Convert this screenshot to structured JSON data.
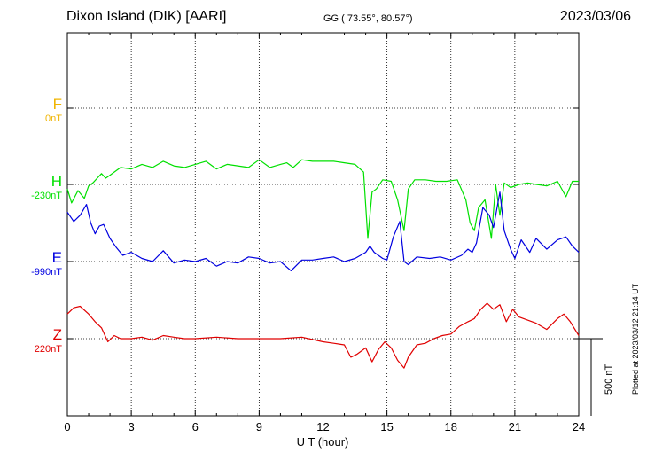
{
  "header": {
    "station": "Dixon Island (DIK)  [AARI]",
    "coords": "GG ( 73.55°,  80.57°)",
    "date": "2023/03/06"
  },
  "plotted_note": "Plotted at 2023/03/12 21:14 UT",
  "chart_data": {
    "type": "line",
    "xlabel": "U T (hour)",
    "xlim": [
      0,
      24
    ],
    "xticks": [
      "0",
      "3",
      "6",
      "9",
      "12",
      "15",
      "18",
      "21",
      "24"
    ],
    "scale_bar": "500 nT",
    "colors": {
      "F": "#f0b400",
      "H": "#00e000",
      "E": "#0000e0",
      "Z": "#e00000"
    },
    "channels": [
      {
        "name": "F",
        "offset": "0nT"
      },
      {
        "name": "H",
        "offset": "-230nT"
      },
      {
        "name": "E",
        "offset": "-990nT"
      },
      {
        "name": "Z",
        "offset": "220nT"
      }
    ],
    "series": [
      {
        "name": "H",
        "x": [
          0,
          0.2,
          0.5,
          0.8,
          1.0,
          1.2,
          1.4,
          1.6,
          1.8,
          2.0,
          2.5,
          3.0,
          3.5,
          4.0,
          4.5,
          5.0,
          5.5,
          6.0,
          6.5,
          7.0,
          7.5,
          8.0,
          8.5,
          9.0,
          9.5,
          10.0,
          10.3,
          10.6,
          11.0,
          11.5,
          12.0,
          12.5,
          13.0,
          13.5,
          13.9,
          14.1,
          14.3,
          14.5,
          14.8,
          15.2,
          15.5,
          15.8,
          16.0,
          16.3,
          16.8,
          17.3,
          17.8,
          18.3,
          18.7,
          18.9,
          19.1,
          19.3,
          19.6,
          19.9,
          20.1,
          20.3,
          20.5,
          20.8,
          21.2,
          21.6,
          22.0,
          22.5,
          23.0,
          23.4,
          23.7,
          24.0
        ],
        "y": [
          -30,
          -120,
          -40,
          -90,
          -10,
          10,
          40,
          70,
          40,
          60,
          110,
          100,
          130,
          110,
          150,
          120,
          110,
          130,
          150,
          100,
          130,
          120,
          110,
          160,
          110,
          130,
          140,
          110,
          160,
          150,
          150,
          150,
          140,
          130,
          80,
          -350,
          -50,
          -30,
          30,
          20,
          -100,
          -300,
          -30,
          30,
          30,
          20,
          20,
          30,
          -100,
          -250,
          -300,
          -150,
          -100,
          -350,
          0,
          -200,
          10,
          -20,
          0,
          10,
          0,
          -10,
          20,
          -80,
          20,
          20
        ]
      },
      {
        "name": "E",
        "x": [
          0,
          0.3,
          0.6,
          0.9,
          1.1,
          1.3,
          1.5,
          1.7,
          2.0,
          2.3,
          2.6,
          3.0,
          3.5,
          4.0,
          4.5,
          5.0,
          5.5,
          6.0,
          6.5,
          7.0,
          7.5,
          8.0,
          8.5,
          9.0,
          9.5,
          10.0,
          10.5,
          11.0,
          11.5,
          12.0,
          12.5,
          13.0,
          13.5,
          14.0,
          14.2,
          14.4,
          14.8,
          15.0,
          15.3,
          15.6,
          15.8,
          16.0,
          16.4,
          17.0,
          17.5,
          18.0,
          18.5,
          18.8,
          19.0,
          19.2,
          19.5,
          19.8,
          20.0,
          20.3,
          20.5,
          20.8,
          21.0,
          21.3,
          21.7,
          22.0,
          22.5,
          23.0,
          23.4,
          23.7,
          24.0
        ],
        "y": [
          320,
          260,
          300,
          370,
          250,
          180,
          230,
          240,
          150,
          90,
          40,
          60,
          20,
          0,
          70,
          -10,
          10,
          0,
          20,
          -30,
          0,
          -10,
          30,
          20,
          -10,
          0,
          -60,
          10,
          10,
          20,
          30,
          0,
          20,
          60,
          100,
          60,
          20,
          10,
          160,
          260,
          0,
          -20,
          30,
          20,
          30,
          10,
          40,
          80,
          60,
          120,
          350,
          300,
          220,
          450,
          200,
          80,
          20,
          140,
          60,
          150,
          80,
          140,
          160,
          100,
          60
        ]
      },
      {
        "name": "Z",
        "x": [
          0,
          0.3,
          0.6,
          1.0,
          1.3,
          1.6,
          1.9,
          2.2,
          2.5,
          3.0,
          3.5,
          4.0,
          4.5,
          5.0,
          5.5,
          6.0,
          7.0,
          8.0,
          9.0,
          10.0,
          11.0,
          12.0,
          12.5,
          13.0,
          13.3,
          13.6,
          14.0,
          14.3,
          14.6,
          14.9,
          15.2,
          15.5,
          15.8,
          16.0,
          16.4,
          16.8,
          17.2,
          17.6,
          18.0,
          18.4,
          18.8,
          19.1,
          19.4,
          19.7,
          20.0,
          20.3,
          20.6,
          20.9,
          21.2,
          21.6,
          22.0,
          22.5,
          23.0,
          23.3,
          23.6,
          24.0
        ],
        "y": [
          160,
          200,
          210,
          160,
          110,
          70,
          -20,
          20,
          0,
          0,
          10,
          -10,
          20,
          10,
          0,
          0,
          10,
          0,
          0,
          0,
          10,
          -20,
          -30,
          -40,
          -120,
          -100,
          -60,
          -150,
          -70,
          -20,
          -60,
          -140,
          -190,
          -120,
          -40,
          -30,
          0,
          20,
          30,
          80,
          110,
          130,
          190,
          230,
          190,
          220,
          110,
          190,
          140,
          120,
          100,
          60,
          130,
          160,
          110,
          20
        ]
      }
    ]
  }
}
